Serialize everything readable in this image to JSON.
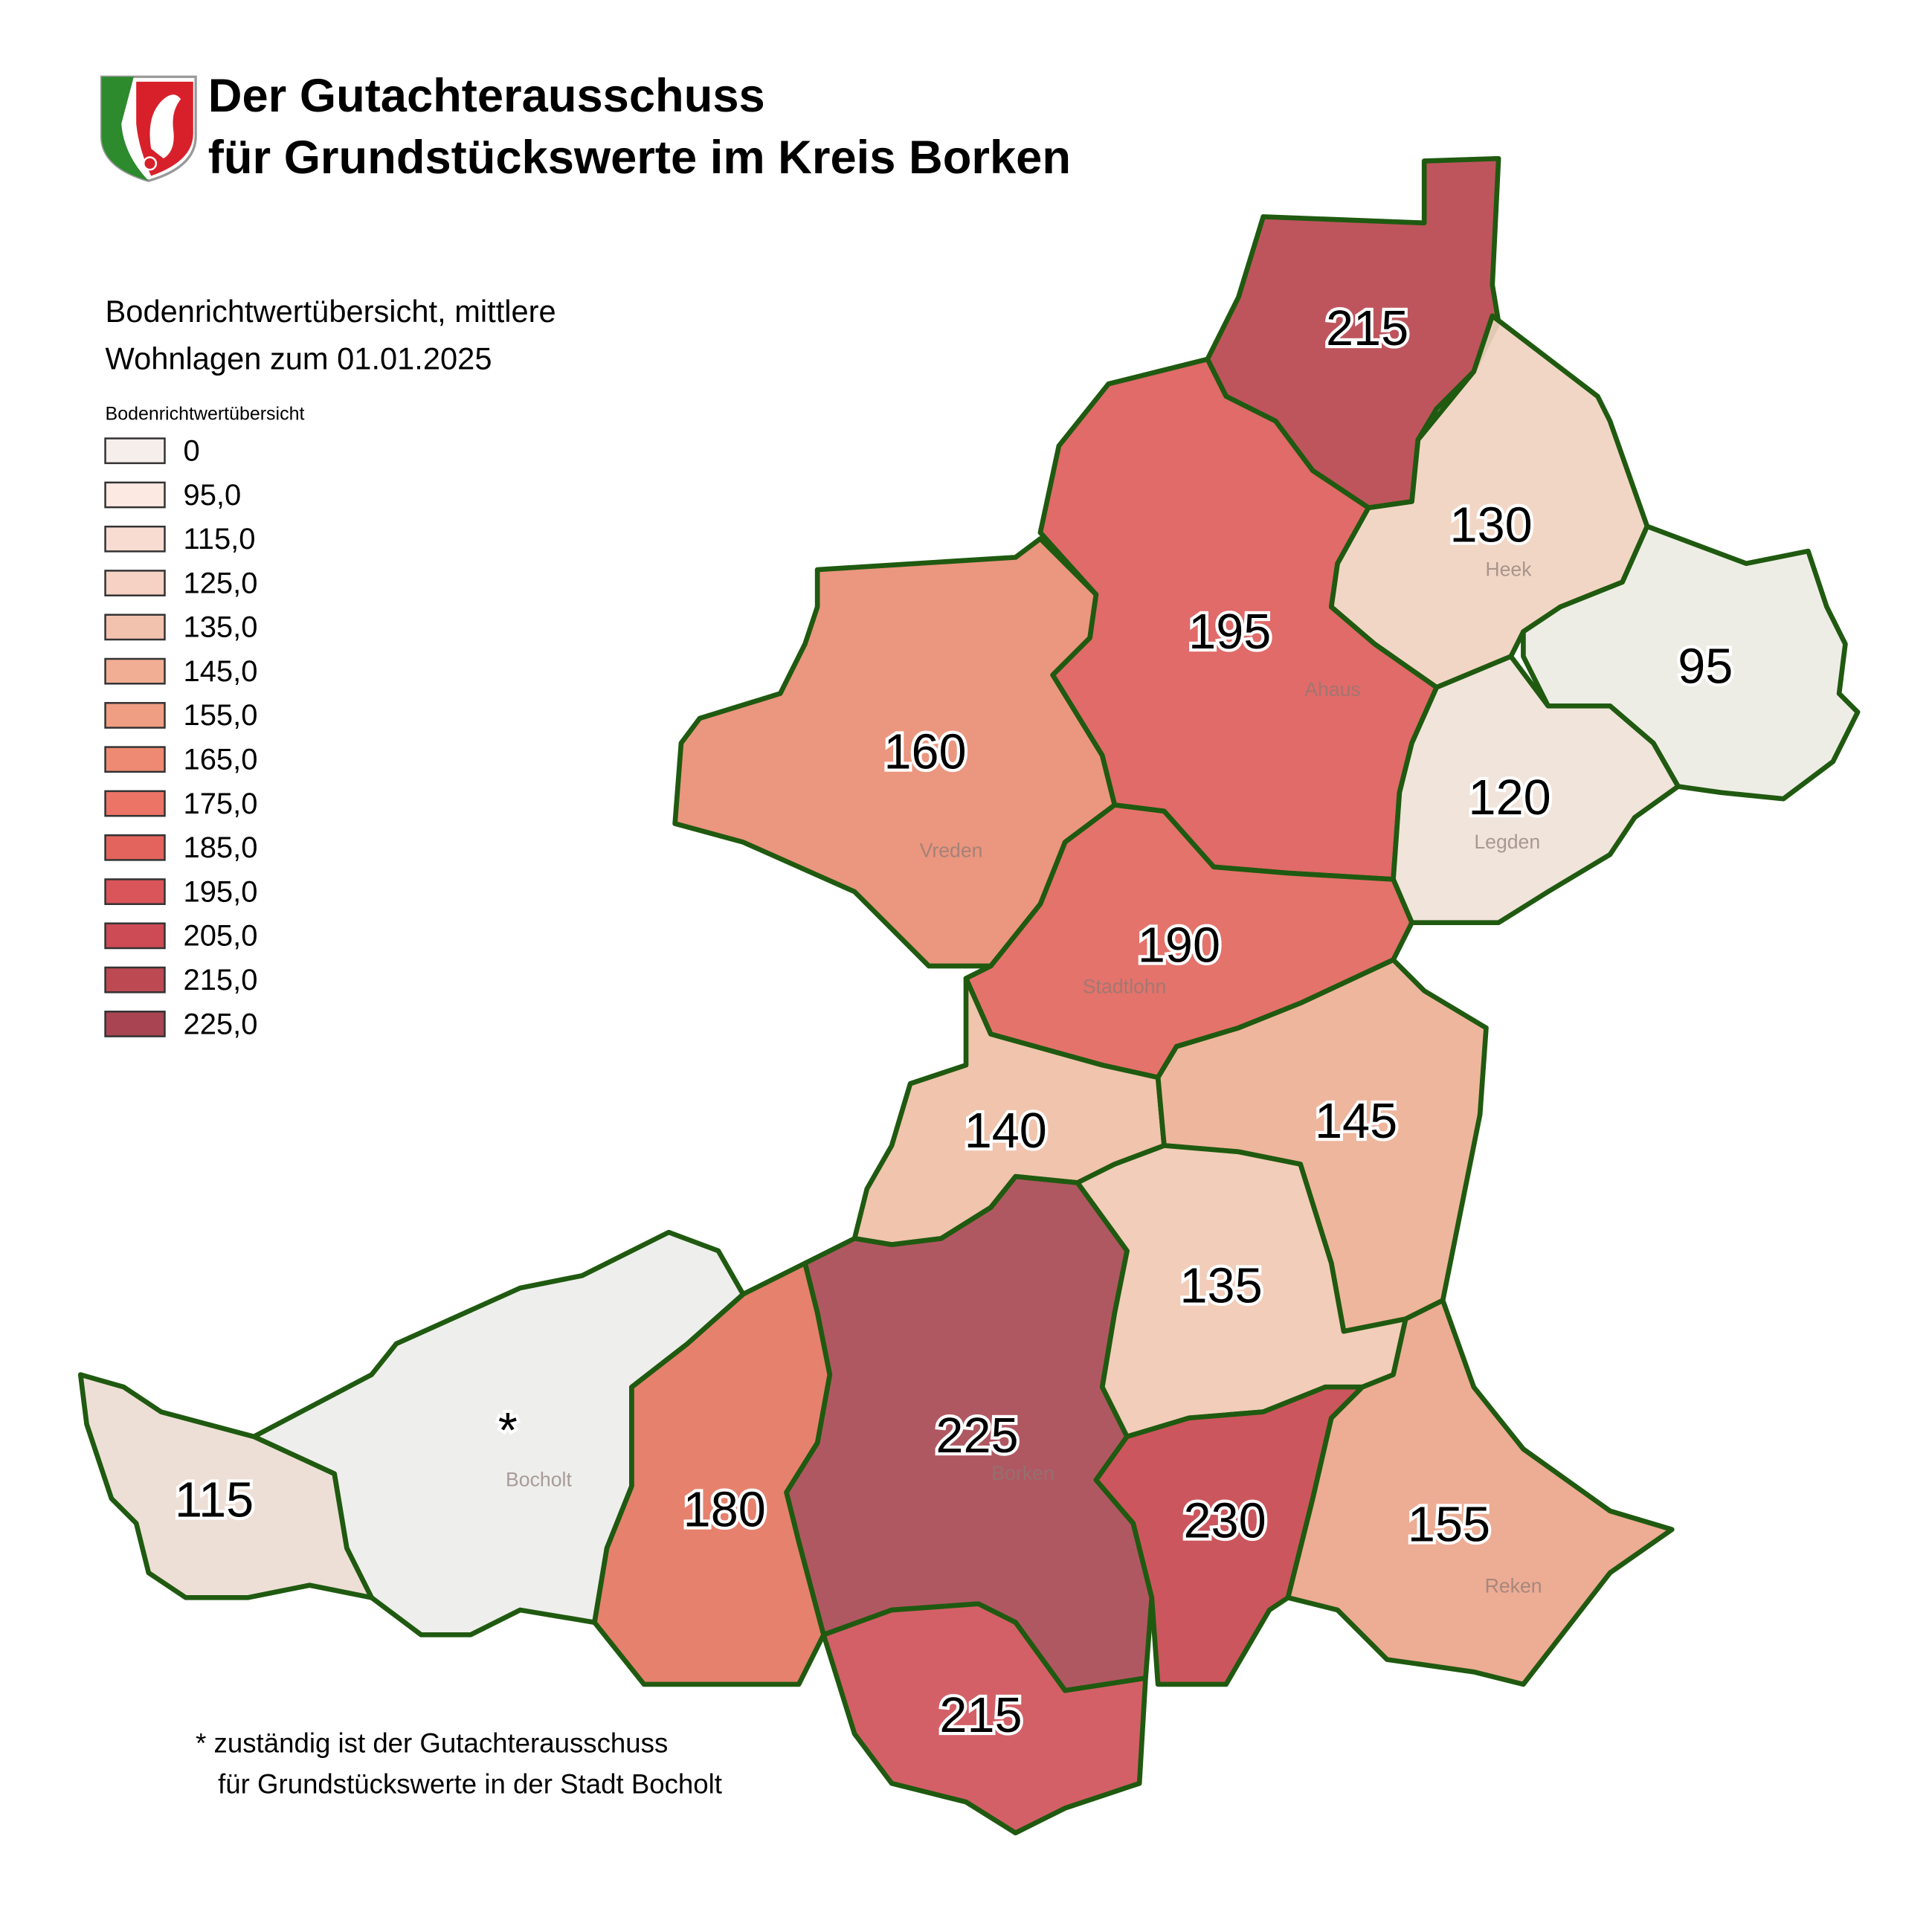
{
  "header": {
    "title_line1": "Der Gutachterausschuss",
    "title_line2": "für Grundstückswerte im Kreis Borken"
  },
  "subtitle_line1": "Bodenrichtwertübersicht,  mittlere",
  "subtitle_line2": "Wohnlagen zum 01.01.2025",
  "legend": {
    "title": "Bodenrichtwertübersicht",
    "items": [
      {
        "label": "0",
        "color": "#f6eeea"
      },
      {
        "label": "95,0",
        "color": "#fbe9e2"
      },
      {
        "label": "115,0",
        "color": "#f8dcd2"
      },
      {
        "label": "125,0",
        "color": "#f6d2c4"
      },
      {
        "label": "135,0",
        "color": "#f3c2ae"
      },
      {
        "label": "145,0",
        "color": "#f1ae94"
      },
      {
        "label": "155,0",
        "color": "#ef9e83"
      },
      {
        "label": "165,0",
        "color": "#ee8a73"
      },
      {
        "label": "175,0",
        "color": "#ec7467"
      },
      {
        "label": "185,0",
        "color": "#e3645d"
      },
      {
        "label": "195,0",
        "color": "#da555a"
      },
      {
        "label": "205,0",
        "color": "#cc4b55"
      },
      {
        "label": "215,0",
        "color": "#bd4a52"
      },
      {
        "label": "225,0",
        "color": "#a94552"
      }
    ]
  },
  "regions": [
    {
      "value": 215,
      "color": "#b8464f"
    },
    {
      "value": 195,
      "color": "#dd5e5c"
    },
    {
      "value": 130,
      "color": "#f1d2c0"
    },
    {
      "value": 95,
      "color": "#ecebe3"
    },
    {
      "value": 120,
      "color": "#efe2d8"
    },
    {
      "value": 160,
      "color": "#e98d74"
    },
    {
      "value": 190,
      "color": "#e2675e"
    },
    {
      "value": 140,
      "color": "#efbfa6"
    },
    {
      "value": 145,
      "color": "#edb095"
    },
    {
      "value": 135,
      "color": "#f1c9b3"
    },
    {
      "value": 225,
      "color": "#a94a55"
    },
    {
      "value": 180,
      "color": "#e47662"
    },
    {
      "value": 215,
      "color": "#cf525a"
    },
    {
      "value": 230,
      "color": "#c8484f"
    },
    {
      "value": 155,
      "color": "#eba58b"
    },
    {
      "label": "*",
      "color": "#ededea"
    },
    {
      "value": 115,
      "color": "#ecdcd2"
    }
  ],
  "places": [
    "Heek",
    "Ahaus",
    "Vreden",
    "Legden",
    "Stadtlohn",
    "Bocholt",
    "Borken",
    "Reken"
  ],
  "footnote_line1": "* zuständig ist der Gutachterausschuss",
  "footnote_line2": "für Grundstückswerte in der Stadt Bocholt"
}
